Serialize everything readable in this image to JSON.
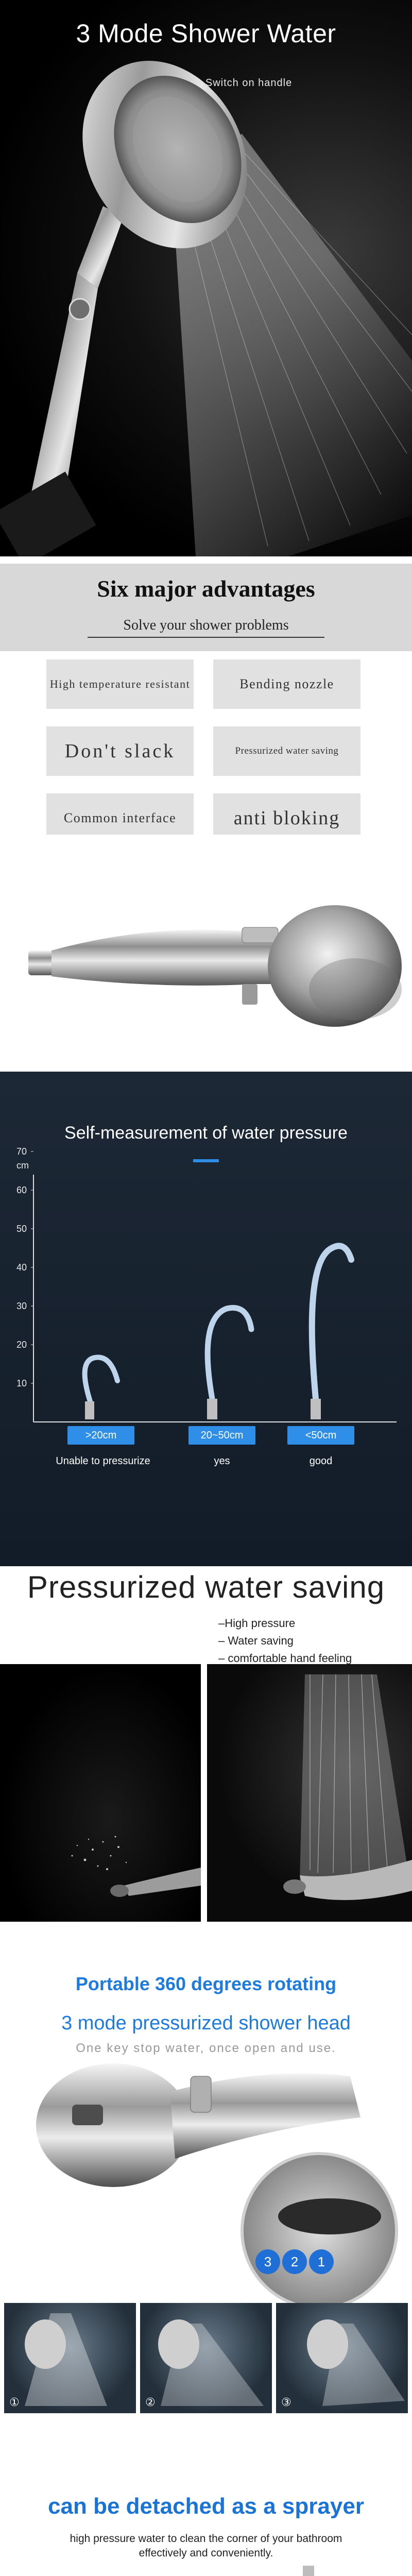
{
  "hero": {
    "title": "3 Mode Shower Water",
    "subtitle": "with Stop Pause Switch on handle"
  },
  "advantages": {
    "title": "Six major advantages",
    "subtitle": "Solve your shower problems",
    "items": [
      "High temperature resistant",
      "Bending nozzle",
      "Don't slack",
      "Pressurized water saving",
      "Common interface",
      "anti bloking"
    ]
  },
  "pressure": {
    "title": "Self-measurement of water pressure",
    "unit": "cm",
    "categories": [
      ">20cm",
      "20~50cm",
      "<50cm"
    ],
    "ratings": [
      "Unable to pressurize",
      "yes",
      "good"
    ],
    "ticks": [
      10,
      20,
      30,
      40,
      50,
      60,
      70
    ]
  },
  "saving": {
    "title": "Pressurized water saving",
    "features": [
      "–High pressure",
      "– Water saving",
      "– comfortable hand feeling"
    ]
  },
  "portable": {
    "line1": "Portable 360 degrees rotating",
    "line2": "3 mode pressurized shower head",
    "line3": "One key stop water, once open and use.",
    "badges": [
      "3",
      "2",
      "1"
    ],
    "modes": [
      "①",
      "②",
      "③"
    ]
  },
  "detach": {
    "title": "can be detached as a sprayer",
    "description": "high pressure water to clean the corner of your bathroom effectively and conveniently."
  },
  "colors": {
    "accent_blue": "#2f8ee8",
    "title_blue": "#1a73d6",
    "chart_bg": "#1a2431"
  }
}
